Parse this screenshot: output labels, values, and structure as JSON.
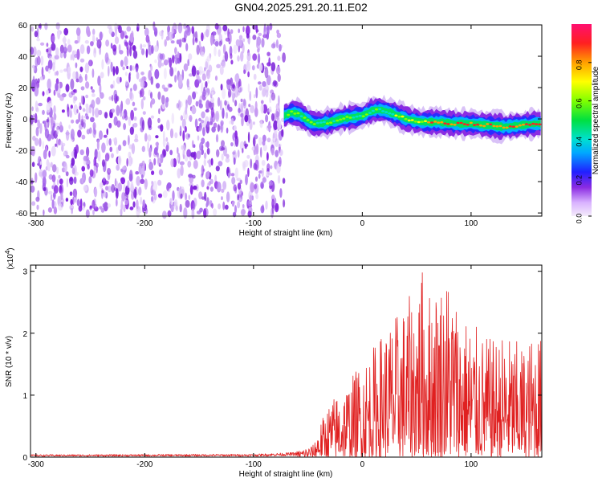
{
  "title": "GN04.2025.291.20.11.E02",
  "chart_data": [
    {
      "type": "heatmap",
      "xlabel": "Height of straight line (km)",
      "ylabel": "Frequency (Hz)",
      "xlim": [
        -305,
        165
      ],
      "ylim": [
        -62,
        60
      ],
      "xticks": [
        -300,
        -200,
        -100,
        0,
        100
      ],
      "yticks": [
        60,
        40,
        20,
        0,
        -20,
        -40,
        -60
      ],
      "noise_region_x": [
        -305,
        -72
      ],
      "signal_region_x": [
        -72,
        165
      ],
      "signal_trace": {
        "x": [
          -72,
          -65,
          -58,
          -52,
          -45,
          -38,
          -30,
          -20,
          -10,
          0,
          8,
          15,
          22,
          30,
          40,
          55,
          70,
          85,
          100,
          115,
          130,
          145,
          160,
          165
        ],
        "y": [
          2,
          4,
          3,
          0,
          -3,
          -3,
          -2,
          0,
          1,
          2,
          5,
          6,
          5,
          3,
          0,
          -2,
          -2,
          -3,
          -3,
          -4,
          -5,
          -4,
          -3,
          -3
        ]
      },
      "colorbar": {
        "label": "Normalized spectral amplitude",
        "range": [
          0,
          1
        ],
        "ticks": [
          0.0,
          0.2,
          0.4,
          0.6,
          0.8
        ]
      }
    },
    {
      "type": "line",
      "xlabel": "Height of straight line (km)",
      "ylabel": "SNR (10 * v/v)",
      "multiplier_label": "(x10",
      "multiplier_exp": "4",
      "xlim": [
        -305,
        165
      ],
      "ylim": [
        0,
        3.1
      ],
      "xticks": [
        -300,
        -200,
        -100,
        0,
        100
      ],
      "yticks": [
        0,
        1,
        2,
        3
      ],
      "series": [
        {
          "color": "#e02020",
          "envelope_x": [
            -305,
            -100,
            -60,
            -45,
            -40,
            -30,
            -20,
            -10,
            0,
            10,
            20,
            30,
            40,
            50,
            55,
            60,
            70,
            80,
            90,
            100,
            110,
            120,
            130,
            140,
            150,
            160,
            165
          ],
          "envelope_y": [
            0.05,
            0.06,
            0.1,
            0.2,
            0.5,
            0.9,
            1.1,
            1.3,
            1.6,
            1.8,
            2.1,
            2.3,
            2.5,
            2.8,
            3.1,
            2.7,
            2.9,
            3.0,
            2.4,
            2.2,
            2.0,
            1.9,
            2.0,
            1.9,
            1.8,
            2.1,
            1.9
          ]
        }
      ]
    }
  ]
}
